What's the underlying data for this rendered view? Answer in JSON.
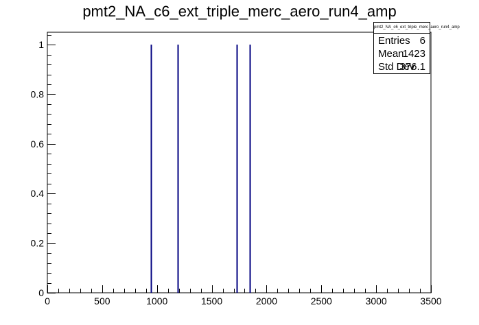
{
  "chart_data": {
    "type": "histogram",
    "title": "pmt2_NA_c6_ext_triple_merc_aero_run4_amp",
    "xlabel": "",
    "ylabel": "",
    "xlim": [
      0,
      3500
    ],
    "ylim": [
      0,
      1.05
    ],
    "x_ticks": [
      0,
      500,
      1000,
      1500,
      2000,
      2500,
      3000,
      3500
    ],
    "y_ticks": [
      0,
      0.2,
      0.4,
      0.6,
      0.8,
      1
    ],
    "grid": false,
    "series": [
      {
        "entries_x": [
          945,
          1190,
          1725,
          1845
        ],
        "values": [
          1,
          1,
          1,
          1
        ]
      }
    ],
    "stats": {
      "name": "pmt2_NA_c6_ext_triple_merc_aero_run4_amp",
      "rows": [
        {
          "label": "Entries",
          "value": "6"
        },
        {
          "label": "Mean",
          "value": "1423"
        },
        {
          "label": "Std Dev",
          "value": "376.1"
        }
      ]
    },
    "line_color": "#000080"
  }
}
